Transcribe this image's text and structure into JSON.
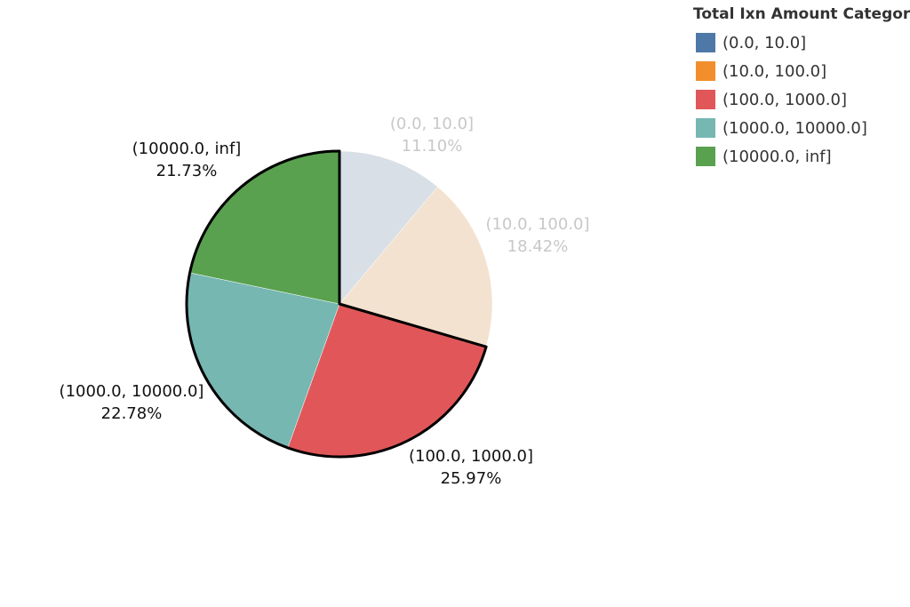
{
  "chart_data": {
    "type": "pie",
    "categories": [
      "(0.0, 10.0]",
      "(10.0, 100.0]",
      "(100.0, 1000.0]",
      "(1000.0, 10000.0]",
      "(10000.0, inf]"
    ],
    "values": [
      11.1,
      18.42,
      25.97,
      22.78,
      21.73
    ],
    "value_labels": [
      "11.10%",
      "18.42%",
      "25.97%",
      "22.78%",
      "21.73%"
    ],
    "colors": [
      "#4e79a7",
      "#f28e2b",
      "#e15759",
      "#76b7b2",
      "#59a14f"
    ],
    "faded_colors": [
      "#d9dfe6",
      "#f3e2d0",
      null,
      null,
      null
    ],
    "selected": [
      false,
      false,
      true,
      true,
      true
    ],
    "legend": {
      "title": "Total Ixn Amount Category",
      "placement": "top-right"
    }
  }
}
